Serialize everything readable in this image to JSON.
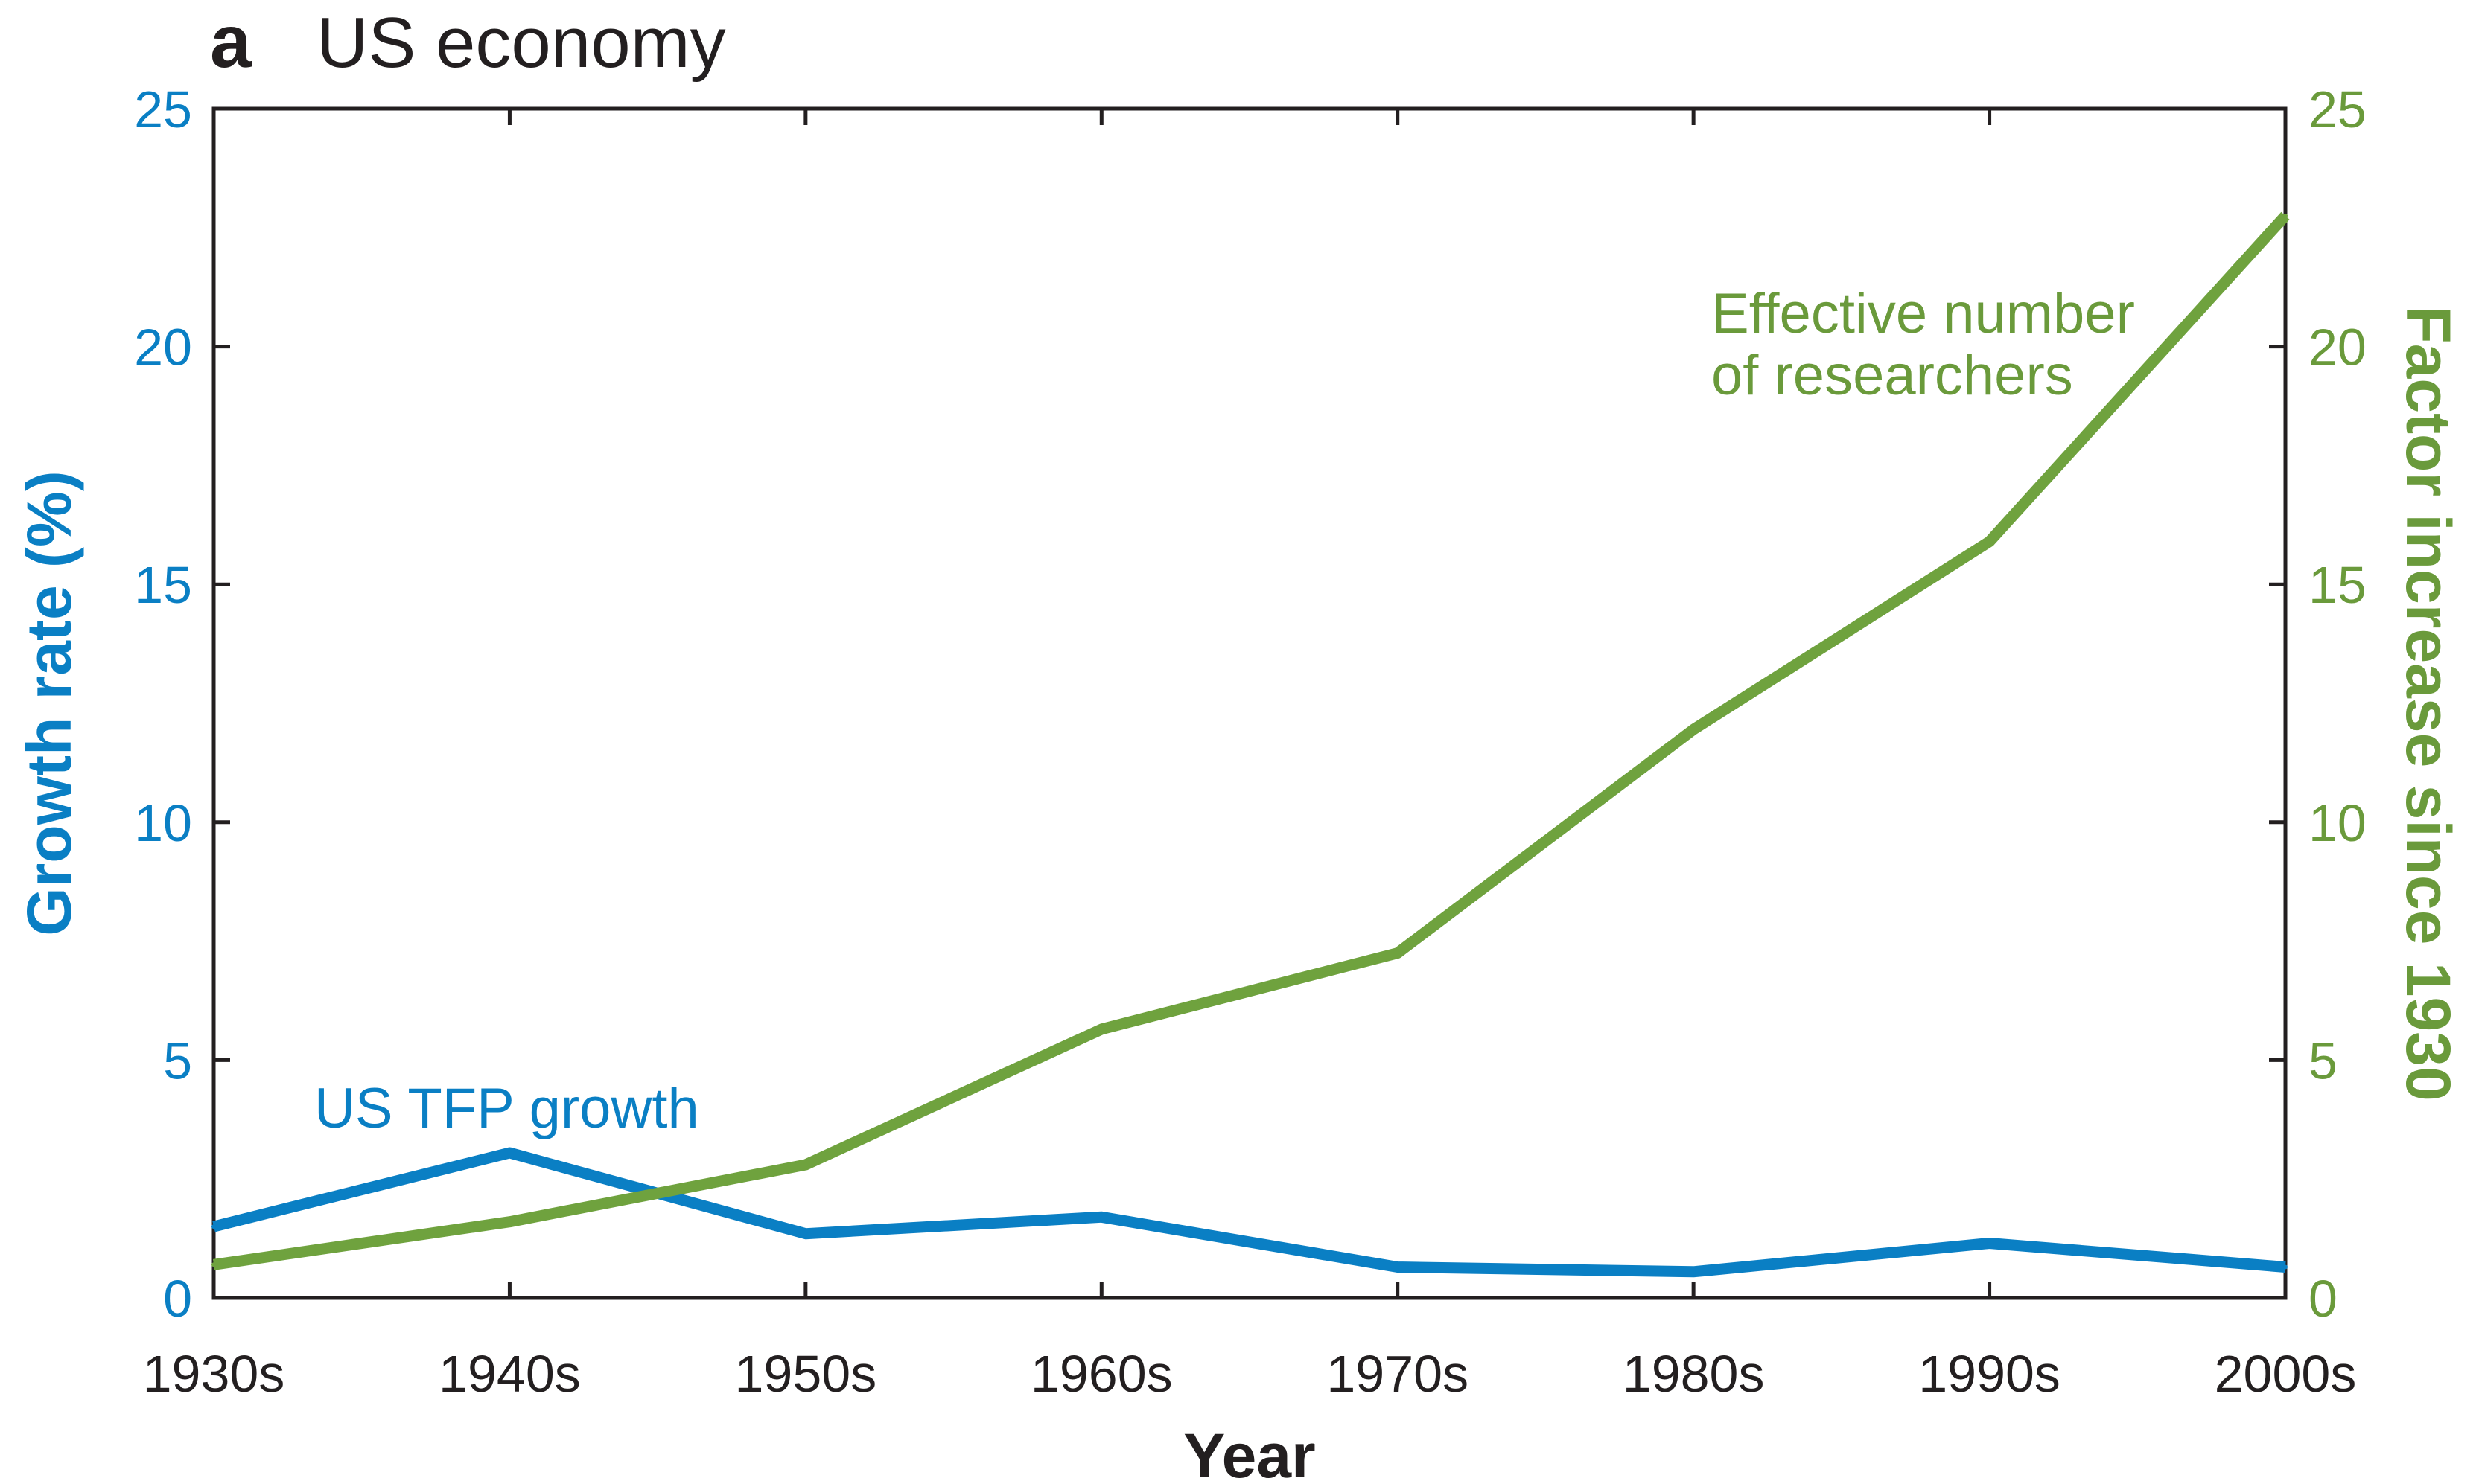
{
  "panel": {
    "letter": "a",
    "title": "US economy"
  },
  "colors": {
    "left_axis": "#0a7fc4",
    "right_axis": "#6a9a3b",
    "tfp_line": "#0a7fc4",
    "researchers_line": "#6fa23e",
    "frame": "#231f20"
  },
  "chart_data": {
    "type": "line",
    "xlabel": "Year",
    "categories": [
      "1930s",
      "1940s",
      "1950s",
      "1960s",
      "1970s",
      "1980s",
      "1990s",
      "2000s"
    ],
    "y_left": {
      "label": "Growth rate (%)",
      "lim": [
        0,
        25
      ],
      "ticks": [
        "0",
        "5",
        "10",
        "15",
        "20",
        "25"
      ]
    },
    "y_right": {
      "label": "Factor increase since 1930",
      "lim": [
        0,
        25
      ],
      "ticks": [
        "0",
        "5",
        "10",
        "15",
        "20",
        "25"
      ]
    },
    "series": [
      {
        "name": "US TFP growth",
        "axis": "left",
        "values": [
          1.5,
          3.05,
          1.35,
          1.7,
          0.65,
          0.55,
          1.15,
          0.65
        ]
      },
      {
        "name": "Effective number of researchers",
        "axis": "right",
        "values": [
          0.7,
          1.6,
          2.8,
          5.65,
          7.25,
          11.95,
          15.9,
          22.75
        ]
      }
    ],
    "annotations": {
      "tfp_label": "US TFP growth",
      "researchers_label_line1": "Effective number",
      "researchers_label_line2": "of researchers"
    },
    "grid": false
  }
}
